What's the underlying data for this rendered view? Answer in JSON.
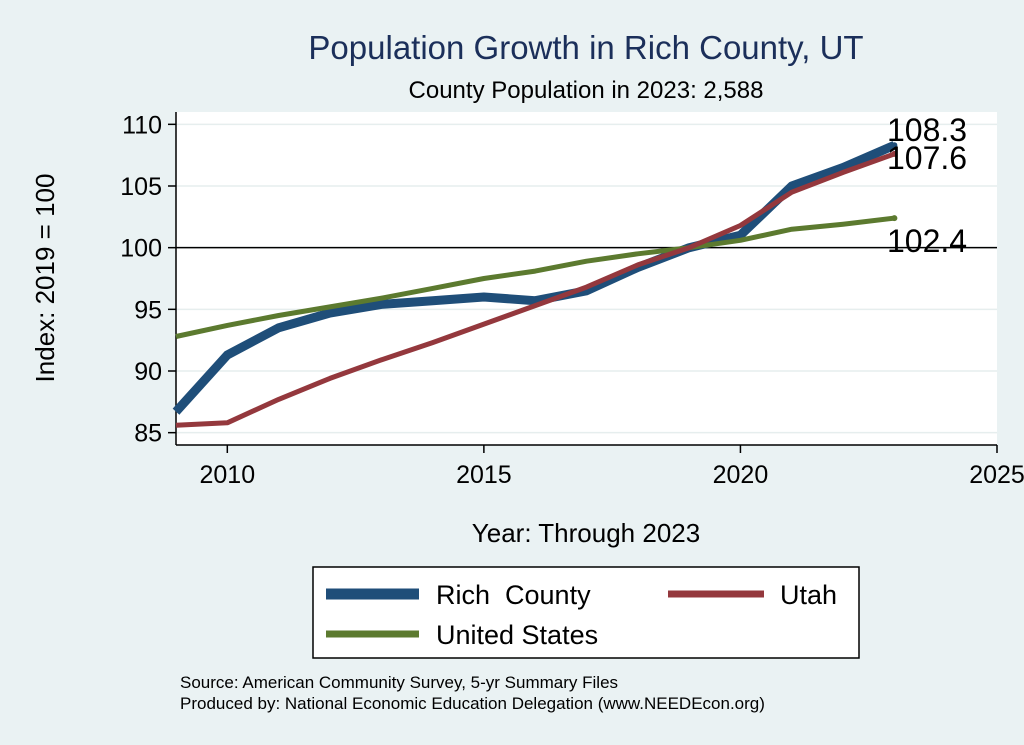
{
  "chart_data": {
    "type": "line",
    "title": "Population Growth in Rich County, UT",
    "subtitle": "County Population in 2023: 2,588",
    "xlabel": "Year: Through 2023",
    "ylabel": "Index: 2019 = 100",
    "xlim": [
      2009,
      2025
    ],
    "ylim": [
      84,
      111
    ],
    "xticks": [
      2010,
      2015,
      2020,
      2025
    ],
    "yticks": [
      85,
      90,
      95,
      100,
      105,
      110
    ],
    "reference_line": 100,
    "grid": true,
    "legend_position": "bottom",
    "x": [
      2009,
      2010,
      2011,
      2012,
      2013,
      2014,
      2015,
      2016,
      2017,
      2018,
      2019,
      2020,
      2021,
      2022,
      2023
    ],
    "series": [
      {
        "name": "Rich  County",
        "color": "#1f4e79",
        "values": [
          86.7,
          91.3,
          93.5,
          94.7,
          95.4,
          95.7,
          96.0,
          95.7,
          96.5,
          98.4,
          100.0,
          101.0,
          105.0,
          106.5,
          108.3
        ],
        "end_label": "108.3"
      },
      {
        "name": "Utah",
        "color": "#94383d",
        "values": [
          85.6,
          85.8,
          87.7,
          89.4,
          90.9,
          92.3,
          93.8,
          95.3,
          96.8,
          98.6,
          100.0,
          101.8,
          104.5,
          106.1,
          107.6
        ],
        "end_label": "107.6"
      },
      {
        "name": "United States",
        "color": "#5c7a2f",
        "values": [
          92.8,
          93.7,
          94.5,
          95.2,
          95.9,
          96.7,
          97.5,
          98.1,
          98.9,
          99.5,
          100.0,
          100.6,
          101.5,
          101.9,
          102.4
        ],
        "end_label": "102.4"
      }
    ],
    "source_lines": [
      "Source: American Community Survey, 5-yr Summary Files",
      "Produced by: National Economic Education Delegation (www.NEEDEcon.org)"
    ]
  }
}
